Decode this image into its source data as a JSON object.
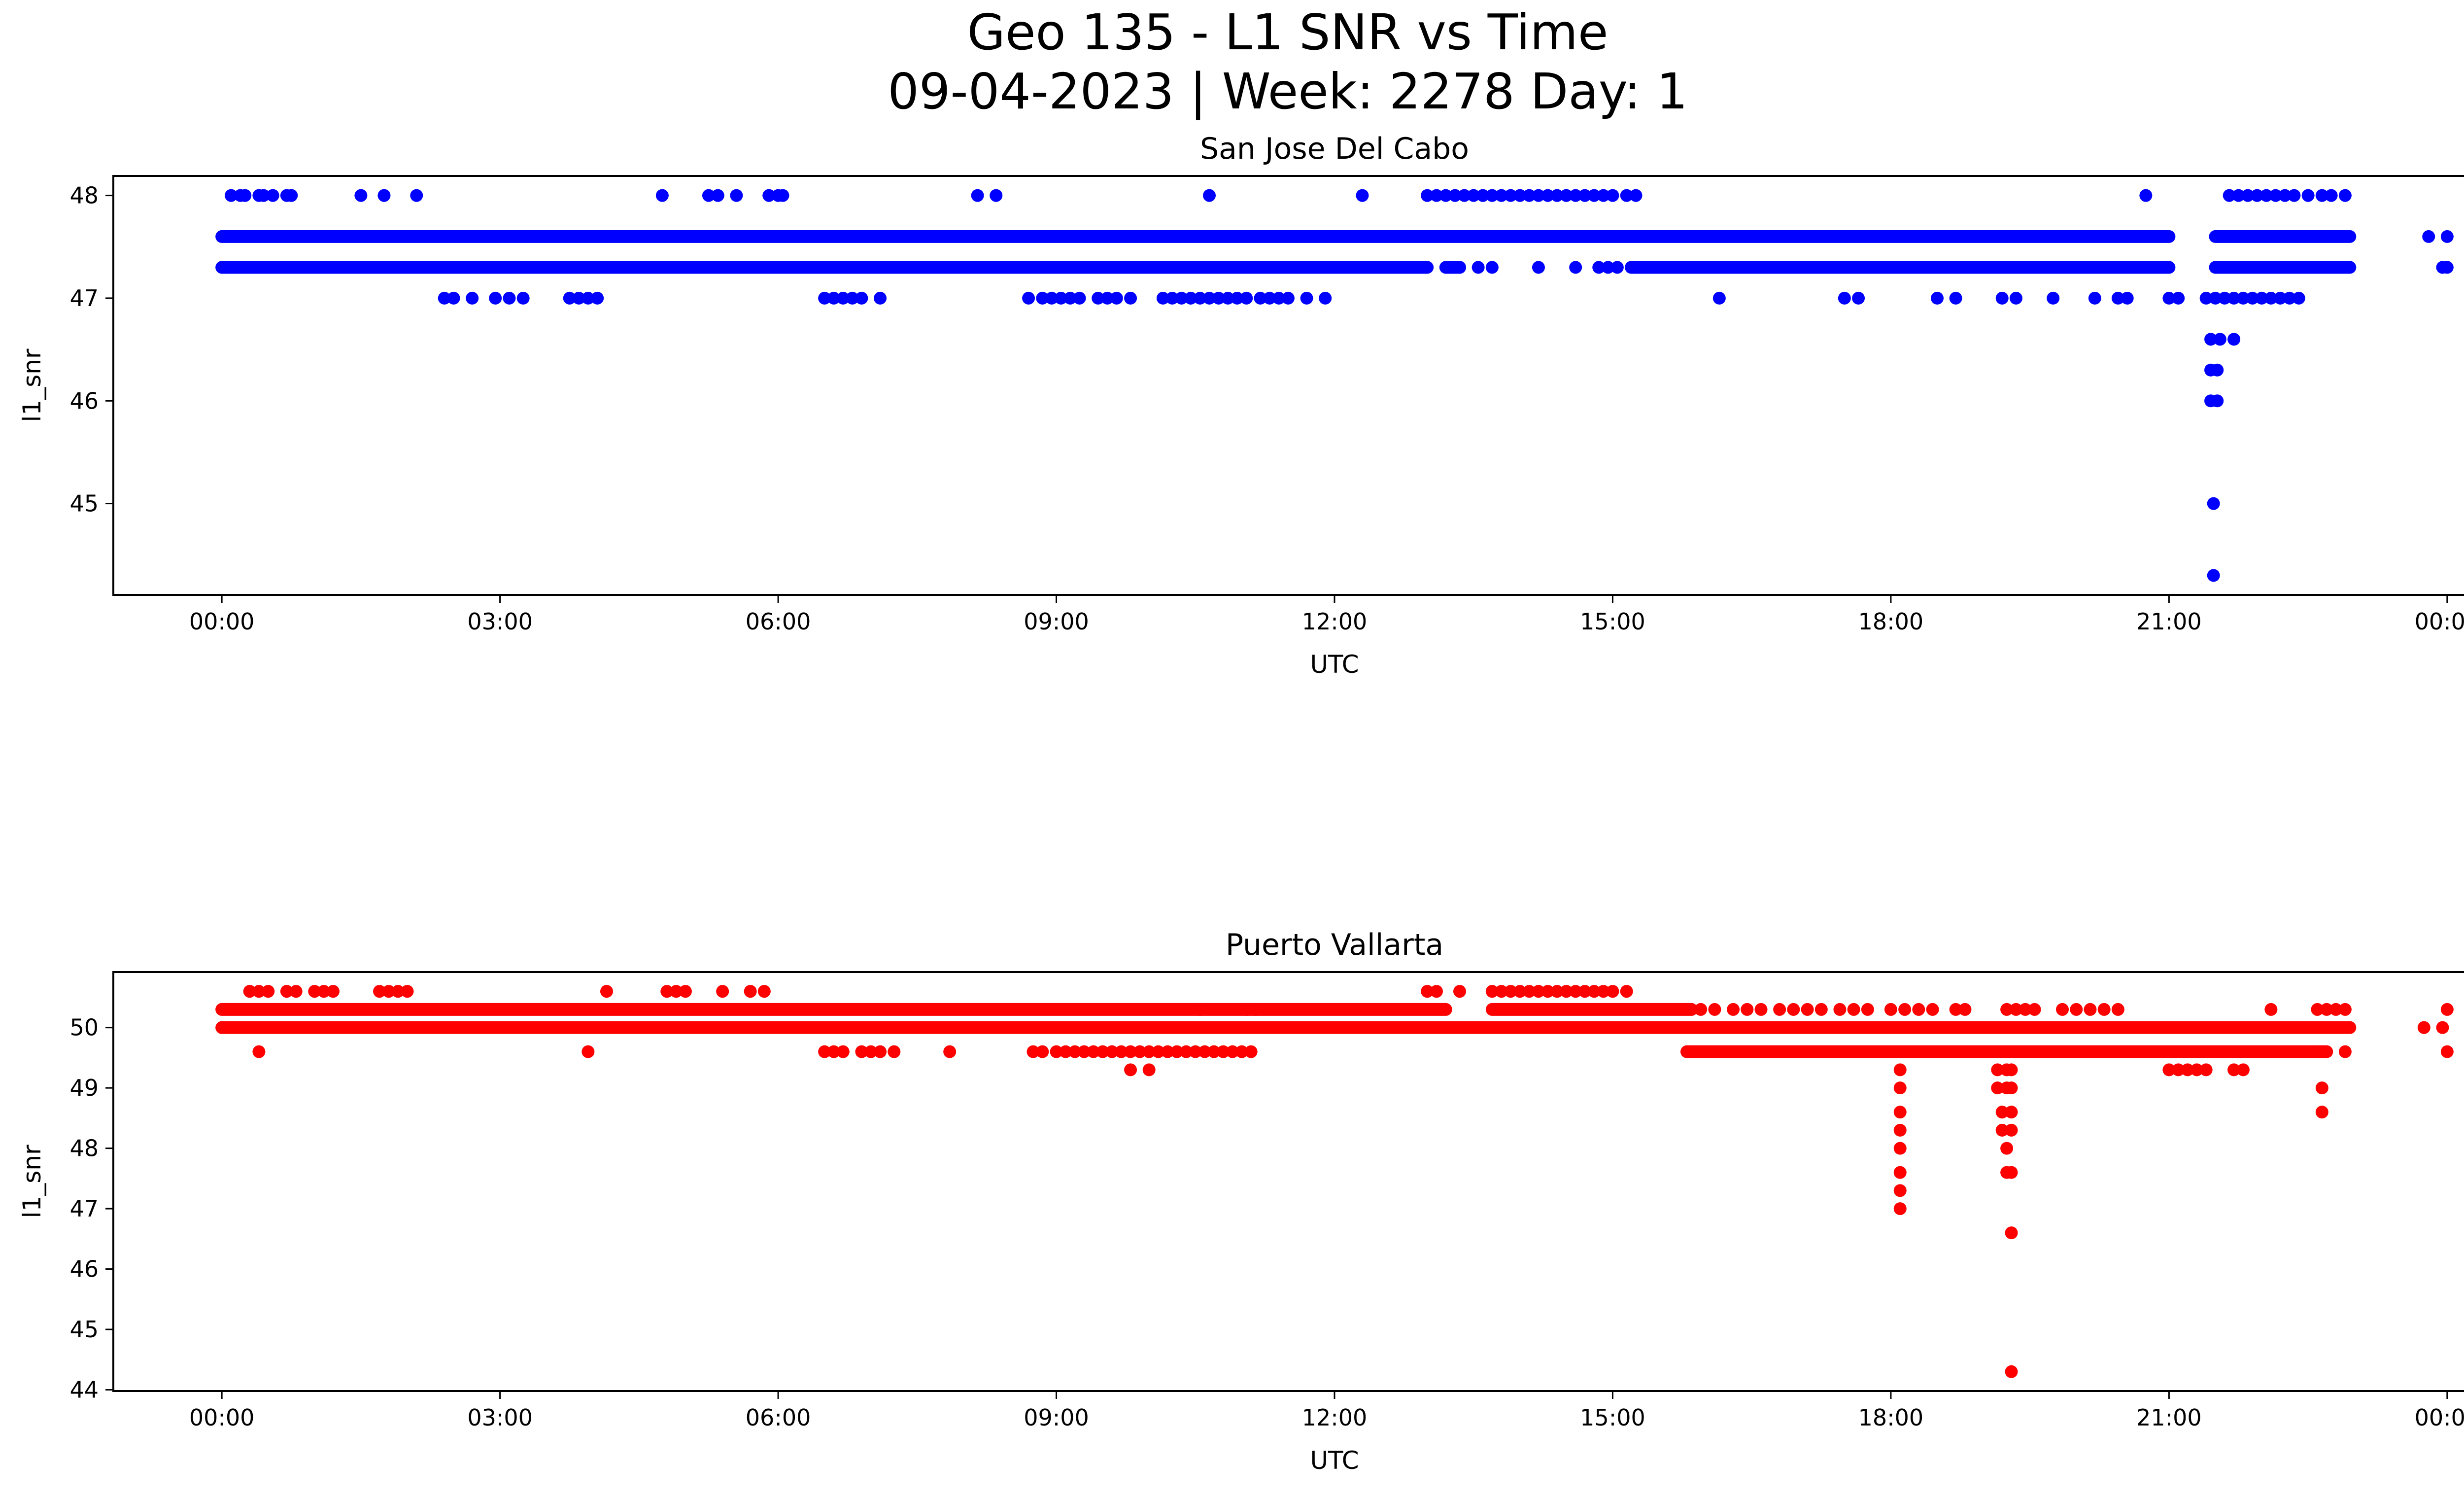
{
  "figure": {
    "title_line1": "Geo 135 - L1 SNR vs Time",
    "title_line2": "09-04-2023 | Week: 2278 Day: 1"
  },
  "chart_data": [
    {
      "type": "scatter",
      "title": "San Jose Del Cabo",
      "xlabel": "UTC",
      "ylabel": "l1_snr",
      "color": "#0000ff",
      "x_unit": "hours since 09-04-2023 00:00 UTC",
      "xlim": [
        -1.17,
        25.17
      ],
      "ylim": [
        44.11,
        48.19
      ],
      "x_ticks": [
        0,
        3,
        6,
        9,
        12,
        15,
        18,
        21,
        24
      ],
      "x_tick_labels": [
        "00:00",
        "03:00",
        "06:00",
        "09:00",
        "12:00",
        "15:00",
        "18:00",
        "21:00",
        "00:00"
      ],
      "y_ticks": [
        45,
        46,
        47,
        48
      ],
      "y_tick_labels": [
        "45",
        "46",
        "47",
        "48"
      ],
      "bands": [
        {
          "y": 47.6,
          "ranges": [
            [
              0.0,
              21.0
            ],
            [
              21.5,
              22.95
            ]
          ]
        },
        {
          "y": 47.3,
          "ranges": [
            [
              0.0,
              13.0
            ],
            [
              13.2,
              13.35
            ],
            [
              15.2,
              21.0
            ],
            [
              21.5,
              22.95
            ]
          ]
        }
      ],
      "points": [
        [
          0.1,
          48
        ],
        [
          0.2,
          48
        ],
        [
          0.25,
          48
        ],
        [
          0.4,
          48
        ],
        [
          0.45,
          48
        ],
        [
          0.55,
          48
        ],
        [
          0.7,
          48
        ],
        [
          0.75,
          48
        ],
        [
          1.5,
          48
        ],
        [
          1.75,
          48
        ],
        [
          2.1,
          48
        ],
        [
          4.75,
          48
        ],
        [
          5.25,
          48
        ],
        [
          5.35,
          48
        ],
        [
          5.55,
          48
        ],
        [
          5.9,
          48
        ],
        [
          6.0,
          48
        ],
        [
          6.05,
          48
        ],
        [
          8.15,
          48
        ],
        [
          8.35,
          48
        ],
        [
          10.65,
          48
        ],
        [
          12.3,
          48
        ],
        [
          13.0,
          48
        ],
        [
          13.1,
          48
        ],
        [
          13.2,
          48
        ],
        [
          13.3,
          48
        ],
        [
          13.4,
          48
        ],
        [
          13.5,
          48
        ],
        [
          13.6,
          48
        ],
        [
          13.7,
          48
        ],
        [
          13.8,
          48
        ],
        [
          13.9,
          48
        ],
        [
          14.0,
          48
        ],
        [
          14.1,
          48
        ],
        [
          14.2,
          48
        ],
        [
          14.3,
          48
        ],
        [
          14.4,
          48
        ],
        [
          14.5,
          48
        ],
        [
          14.6,
          48
        ],
        [
          14.7,
          48
        ],
        [
          14.8,
          48
        ],
        [
          14.9,
          48
        ],
        [
          15.0,
          48
        ],
        [
          15.15,
          48
        ],
        [
          15.25,
          48
        ],
        [
          20.75,
          48
        ],
        [
          21.65,
          48
        ],
        [
          21.75,
          48
        ],
        [
          21.85,
          48
        ],
        [
          21.95,
          48
        ],
        [
          22.05,
          48
        ],
        [
          22.15,
          48
        ],
        [
          22.25,
          48
        ],
        [
          22.35,
          48
        ],
        [
          22.5,
          48
        ],
        [
          22.65,
          48
        ],
        [
          22.75,
          48
        ],
        [
          22.9,
          48
        ],
        [
          23.8,
          47.6
        ],
        [
          24.0,
          47.6
        ],
        [
          13.35,
          47.3
        ],
        [
          13.55,
          47.3
        ],
        [
          13.7,
          47.3
        ],
        [
          14.2,
          47.3
        ],
        [
          14.6,
          47.3
        ],
        [
          14.85,
          47.3
        ],
        [
          14.95,
          47.3
        ],
        [
          15.05,
          47.3
        ],
        [
          24.0,
          47.3
        ],
        [
          23.95,
          47.3
        ],
        [
          2.4,
          47
        ],
        [
          2.5,
          47
        ],
        [
          2.7,
          47
        ],
        [
          2.95,
          47
        ],
        [
          3.1,
          47
        ],
        [
          3.25,
          47
        ],
        [
          3.75,
          47
        ],
        [
          3.85,
          47
        ],
        [
          3.95,
          47
        ],
        [
          4.05,
          47
        ],
        [
          6.5,
          47
        ],
        [
          6.6,
          47
        ],
        [
          6.7,
          47
        ],
        [
          6.8,
          47
        ],
        [
          6.9,
          47
        ],
        [
          7.1,
          47
        ],
        [
          8.7,
          47
        ],
        [
          8.85,
          47
        ],
        [
          8.95,
          47
        ],
        [
          9.05,
          47
        ],
        [
          9.15,
          47
        ],
        [
          9.25,
          47
        ],
        [
          9.45,
          47
        ],
        [
          9.55,
          47
        ],
        [
          9.65,
          47
        ],
        [
          9.8,
          47
        ],
        [
          10.15,
          47
        ],
        [
          10.25,
          47
        ],
        [
          10.35,
          47
        ],
        [
          10.45,
          47
        ],
        [
          10.55,
          47
        ],
        [
          10.65,
          47
        ],
        [
          10.75,
          47
        ],
        [
          10.85,
          47
        ],
        [
          10.95,
          47
        ],
        [
          11.05,
          47
        ],
        [
          11.2,
          47
        ],
        [
          11.3,
          47
        ],
        [
          11.4,
          47
        ],
        [
          11.5,
          47
        ],
        [
          11.7,
          47
        ],
        [
          11.9,
          47
        ],
        [
          16.15,
          47
        ],
        [
          17.5,
          47
        ],
        [
          17.65,
          47
        ],
        [
          18.5,
          47
        ],
        [
          18.7,
          47
        ],
        [
          19.2,
          47
        ],
        [
          19.35,
          47
        ],
        [
          19.75,
          47
        ],
        [
          20.2,
          47
        ],
        [
          20.45,
          47
        ],
        [
          20.55,
          47
        ],
        [
          21.0,
          47
        ],
        [
          21.1,
          47
        ],
        [
          21.4,
          47
        ],
        [
          21.5,
          47
        ],
        [
          21.6,
          47
        ],
        [
          21.7,
          47
        ],
        [
          21.8,
          47
        ],
        [
          21.9,
          47
        ],
        [
          22.0,
          47
        ],
        [
          22.1,
          47
        ],
        [
          22.2,
          47
        ],
        [
          22.3,
          47
        ],
        [
          22.4,
          47
        ],
        [
          21.45,
          46.6
        ],
        [
          21.55,
          46.6
        ],
        [
          21.7,
          46.6
        ],
        [
          21.45,
          46.3
        ],
        [
          21.52,
          46.3
        ],
        [
          21.45,
          46
        ],
        [
          21.52,
          46
        ],
        [
          21.48,
          45
        ],
        [
          21.48,
          44.3
        ]
      ]
    },
    {
      "type": "scatter",
      "title": "Puerto Vallarta",
      "xlabel": "UTC",
      "ylabel": "l1_snr",
      "color": "#ff0000",
      "x_unit": "hours since 09-04-2023 00:00 UTC",
      "xlim": [
        -1.17,
        25.17
      ],
      "ylim": [
        43.98,
        50.92
      ],
      "x_ticks": [
        0,
        3,
        6,
        9,
        12,
        15,
        18,
        21,
        24
      ],
      "x_tick_labels": [
        "00:00",
        "03:00",
        "06:00",
        "09:00",
        "12:00",
        "15:00",
        "18:00",
        "21:00",
        "00:00"
      ],
      "y_ticks": [
        44,
        45,
        46,
        47,
        48,
        49,
        50
      ],
      "y_tick_labels": [
        "44",
        "45",
        "46",
        "47",
        "48",
        "49",
        "50"
      ],
      "bands": [
        {
          "y": 50.3,
          "ranges": [
            [
              0.0,
              13.2
            ],
            [
              13.7,
              15.85
            ]
          ]
        },
        {
          "y": 50.0,
          "ranges": [
            [
              0.0,
              22.95
            ]
          ]
        },
        {
          "y": 49.6,
          "ranges": [
            [
              15.8,
              22.7
            ]
          ]
        }
      ],
      "points": [
        [
          0.3,
          50.6
        ],
        [
          0.4,
          50.6
        ],
        [
          0.5,
          50.6
        ],
        [
          0.7,
          50.6
        ],
        [
          0.8,
          50.6
        ],
        [
          1.0,
          50.6
        ],
        [
          1.1,
          50.6
        ],
        [
          1.2,
          50.6
        ],
        [
          1.7,
          50.6
        ],
        [
          1.8,
          50.6
        ],
        [
          1.9,
          50.6
        ],
        [
          2.0,
          50.6
        ],
        [
          4.15,
          50.6
        ],
        [
          4.8,
          50.6
        ],
        [
          4.9,
          50.6
        ],
        [
          5.0,
          50.6
        ],
        [
          5.4,
          50.6
        ],
        [
          5.7,
          50.6
        ],
        [
          5.85,
          50.6
        ],
        [
          13.0,
          50.6
        ],
        [
          13.1,
          50.6
        ],
        [
          13.35,
          50.6
        ],
        [
          13.7,
          50.6
        ],
        [
          13.8,
          50.6
        ],
        [
          13.9,
          50.6
        ],
        [
          14.0,
          50.6
        ],
        [
          14.1,
          50.6
        ],
        [
          14.2,
          50.6
        ],
        [
          14.3,
          50.6
        ],
        [
          14.4,
          50.6
        ],
        [
          14.5,
          50.6
        ],
        [
          14.6,
          50.6
        ],
        [
          14.7,
          50.6
        ],
        [
          14.8,
          50.6
        ],
        [
          14.9,
          50.6
        ],
        [
          15.0,
          50.6
        ],
        [
          15.15,
          50.6
        ],
        [
          0.4,
          49.6
        ],
        [
          3.95,
          49.6
        ],
        [
          6.5,
          49.6
        ],
        [
          6.6,
          49.6
        ],
        [
          6.7,
          49.6
        ],
        [
          6.9,
          49.6
        ],
        [
          7.0,
          49.6
        ],
        [
          7.1,
          49.6
        ],
        [
          7.25,
          49.6
        ],
        [
          7.85,
          49.6
        ],
        [
          8.75,
          49.6
        ],
        [
          8.85,
          49.6
        ],
        [
          9.0,
          49.6
        ],
        [
          9.1,
          49.6
        ],
        [
          9.2,
          49.6
        ],
        [
          9.3,
          49.6
        ],
        [
          9.4,
          49.6
        ],
        [
          9.5,
          49.6
        ],
        [
          9.6,
          49.6
        ],
        [
          9.7,
          49.6
        ],
        [
          9.8,
          49.6
        ],
        [
          9.9,
          49.6
        ],
        [
          10.0,
          49.6
        ],
        [
          10.1,
          49.6
        ],
        [
          10.2,
          49.6
        ],
        [
          10.3,
          49.6
        ],
        [
          10.4,
          49.6
        ],
        [
          10.5,
          49.6
        ],
        [
          10.6,
          49.6
        ],
        [
          10.7,
          49.6
        ],
        [
          10.8,
          49.6
        ],
        [
          10.9,
          49.6
        ],
        [
          11.0,
          49.6
        ],
        [
          11.1,
          49.6
        ],
        [
          22.9,
          49.6
        ],
        [
          24.0,
          49.6
        ],
        [
          9.8,
          49.3
        ],
        [
          10.0,
          49.3
        ],
        [
          21.0,
          49.3
        ],
        [
          21.1,
          49.3
        ],
        [
          21.2,
          49.3
        ],
        [
          21.3,
          49.3
        ],
        [
          21.4,
          49.3
        ],
        [
          21.7,
          49.3
        ],
        [
          21.8,
          49.3
        ],
        [
          10.55,
          50.3
        ],
        [
          11.05,
          50.3
        ],
        [
          11.15,
          50.3
        ],
        [
          15.95,
          50.3
        ],
        [
          16.1,
          50.3
        ],
        [
          16.3,
          50.3
        ],
        [
          16.45,
          50.3
        ],
        [
          16.6,
          50.3
        ],
        [
          16.8,
          50.3
        ],
        [
          16.95,
          50.3
        ],
        [
          17.1,
          50.3
        ],
        [
          17.25,
          50.3
        ],
        [
          17.45,
          50.3
        ],
        [
          17.6,
          50.3
        ],
        [
          17.75,
          50.3
        ],
        [
          18.0,
          50.3
        ],
        [
          18.15,
          50.3
        ],
        [
          18.3,
          50.3
        ],
        [
          18.45,
          50.3
        ],
        [
          18.7,
          50.3
        ],
        [
          18.8,
          50.3
        ],
        [
          19.25,
          50.3
        ],
        [
          19.35,
          50.3
        ],
        [
          19.45,
          50.3
        ],
        [
          19.55,
          50.3
        ],
        [
          19.85,
          50.3
        ],
        [
          20.0,
          50.3
        ],
        [
          20.15,
          50.3
        ],
        [
          20.3,
          50.3
        ],
        [
          20.45,
          50.3
        ],
        [
          22.1,
          50.3
        ],
        [
          22.6,
          50.3
        ],
        [
          22.7,
          50.3
        ],
        [
          22.8,
          50.3
        ],
        [
          22.9,
          50.3
        ],
        [
          24.0,
          50.3
        ],
        [
          14.25,
          50
        ],
        [
          23.75,
          50
        ],
        [
          23.95,
          50
        ],
        [
          18.1,
          49.3
        ],
        [
          18.1,
          49
        ],
        [
          18.1,
          48.6
        ],
        [
          18.1,
          48.3
        ],
        [
          18.1,
          48
        ],
        [
          18.1,
          47.6
        ],
        [
          18.1,
          47.3
        ],
        [
          18.1,
          47
        ],
        [
          19.15,
          49.3
        ],
        [
          19.25,
          49.3
        ],
        [
          19.3,
          49.3
        ],
        [
          19.15,
          49
        ],
        [
          19.25,
          49
        ],
        [
          19.3,
          49
        ],
        [
          19.2,
          48.6
        ],
        [
          19.3,
          48.6
        ],
        [
          19.2,
          48.3
        ],
        [
          19.3,
          48.3
        ],
        [
          19.25,
          48
        ],
        [
          19.25,
          47.6
        ],
        [
          19.3,
          47.6
        ],
        [
          19.3,
          46.6
        ],
        [
          19.3,
          44.3
        ],
        [
          22.65,
          49
        ],
        [
          22.65,
          48.6
        ]
      ]
    }
  ]
}
